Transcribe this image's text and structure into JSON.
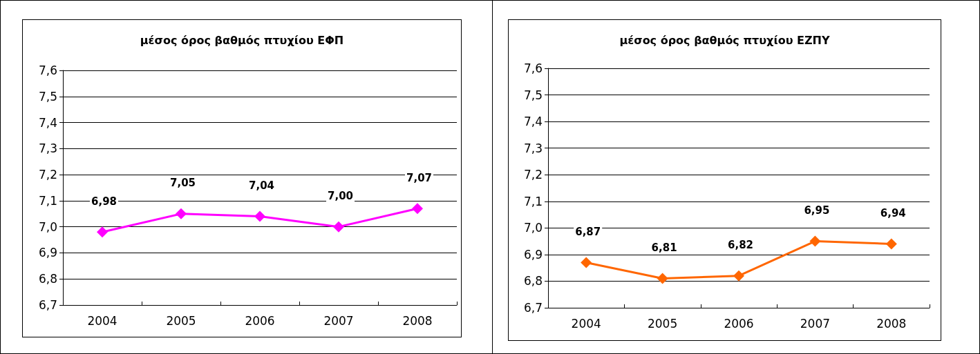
{
  "chart_data": [
    {
      "type": "line",
      "title": "μέσος όρος βαθμός πτυχίου ΕΦΠ",
      "categories": [
        "2004",
        "2005",
        "2006",
        "2007",
        "2008"
      ],
      "series": [
        {
          "color": "#ff00ff",
          "values": [
            6.98,
            7.05,
            7.04,
            7.0,
            7.07
          ],
          "value_labels": [
            "6,98",
            "7,05",
            "7,04",
            "7,00",
            "7,07"
          ]
        }
      ],
      "ylim": [
        6.7,
        7.6
      ],
      "yticks": [
        {
          "value": 6.7,
          "label": "6,7"
        },
        {
          "value": 6.8,
          "label": "6,8"
        },
        {
          "value": 6.9,
          "label": "6,9"
        },
        {
          "value": 7.0,
          "label": "7,0"
        },
        {
          "value": 7.1,
          "label": "7,1"
        },
        {
          "value": 7.2,
          "label": "7,2"
        },
        {
          "value": 7.3,
          "label": "7,3"
        },
        {
          "value": 7.4,
          "label": "7,4"
        },
        {
          "value": 7.5,
          "label": "7,5"
        },
        {
          "value": 7.6,
          "label": "7,6"
        }
      ],
      "grid": "y",
      "marker": "diamond",
      "line_style": "solid"
    },
    {
      "type": "line",
      "title": "μέσος όρος βαθμός πτυχίου ΕΖΠΥ",
      "categories": [
        "2004",
        "2005",
        "2006",
        "2007",
        "2008"
      ],
      "series": [
        {
          "color": "#ff6600",
          "values": [
            6.87,
            6.81,
            6.82,
            6.95,
            6.94
          ],
          "value_labels": [
            "6,87",
            "6,81",
            "6,82",
            "6,95",
            "6,94"
          ]
        }
      ],
      "ylim": [
        6.7,
        7.6
      ],
      "yticks": [
        {
          "value": 6.7,
          "label": "6,7"
        },
        {
          "value": 6.8,
          "label": "6,8"
        },
        {
          "value": 6.9,
          "label": "6,9"
        },
        {
          "value": 7.0,
          "label": "7,0"
        },
        {
          "value": 7.1,
          "label": "7,1"
        },
        {
          "value": 7.2,
          "label": "7,2"
        },
        {
          "value": 7.3,
          "label": "7,3"
        },
        {
          "value": 7.4,
          "label": "7,4"
        },
        {
          "value": 7.5,
          "label": "7,5"
        },
        {
          "value": 7.6,
          "label": "7,6"
        }
      ],
      "grid": "y",
      "marker": "diamond",
      "line_style": "solid"
    }
  ]
}
